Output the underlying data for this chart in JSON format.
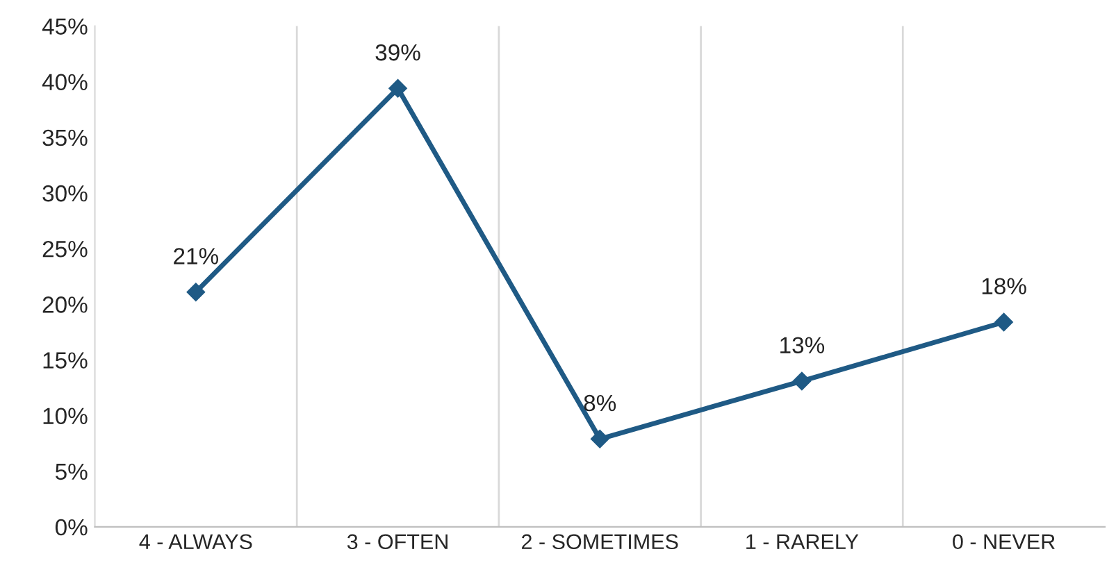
{
  "chart_data": {
    "type": "line",
    "categories": [
      "4 - ALWAYS",
      "3 - OFTEN",
      "2 - SOMETIMES",
      "1 - RARELY",
      "0 - NEVER"
    ],
    "series": [
      {
        "color": "#1f5a85",
        "values": [
          21.1,
          39.4,
          7.9,
          13.1,
          18.4
        ],
        "value_labels": [
          "21%",
          "39%",
          "8%",
          "13%",
          "18%"
        ]
      }
    ],
    "ylim": [
      0,
      45
    ],
    "yticks": [
      {
        "value": 0,
        "label": "0%"
      },
      {
        "value": 5,
        "label": "5%"
      },
      {
        "value": 10,
        "label": "10%"
      },
      {
        "value": 15,
        "label": "15%"
      },
      {
        "value": 20,
        "label": "20%"
      },
      {
        "value": 25,
        "label": "25%"
      },
      {
        "value": 30,
        "label": "30%"
      },
      {
        "value": 35,
        "label": "35%"
      },
      {
        "value": 40,
        "label": "40%"
      },
      {
        "value": 45,
        "label": "45%"
      }
    ],
    "grid": "x",
    "marker": "diamond",
    "line_style": "solid"
  }
}
